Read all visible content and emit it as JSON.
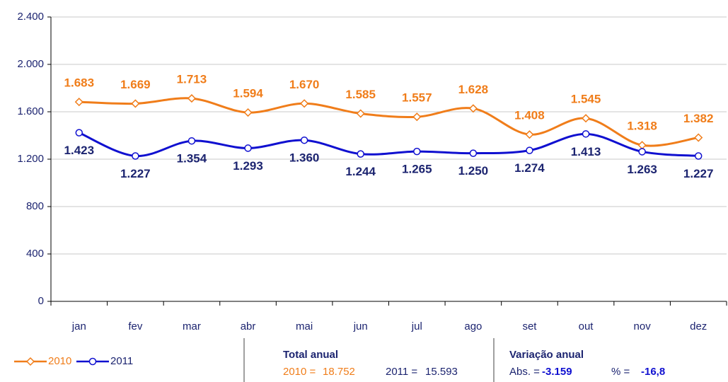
{
  "chart_data": {
    "type": "line",
    "categories": [
      "jan",
      "fev",
      "mar",
      "abr",
      "mai",
      "jun",
      "jul",
      "ago",
      "set",
      "out",
      "nov",
      "dez"
    ],
    "series": [
      {
        "name": "2010",
        "color": "#f07d1a",
        "label_color": "#f07d1a",
        "marker": "diamond",
        "values": [
          1683,
          1669,
          1713,
          1594,
          1670,
          1585,
          1557,
          1628,
          1408,
          1545,
          1318,
          1382
        ],
        "value_labels": [
          "1.683",
          "1.669",
          "1.713",
          "1.594",
          "1.670",
          "1.585",
          "1.557",
          "1.628",
          "1.408",
          "1.545",
          "1.318",
          "1.382"
        ]
      },
      {
        "name": "2011",
        "color": "#1010d0",
        "label_color": "#1c2470",
        "marker": "circle",
        "values": [
          1423,
          1227,
          1354,
          1293,
          1360,
          1244,
          1265,
          1250,
          1274,
          1413,
          1263,
          1227
        ],
        "value_labels": [
          "1.423",
          "1.227",
          "1.354",
          "1.293",
          "1.360",
          "1.244",
          "1.265",
          "1.250",
          "1.274",
          "1.413",
          "1.263",
          "1.227"
        ]
      }
    ],
    "ylim": [
      0,
      2400
    ],
    "yticks": [
      0,
      400,
      800,
      {
        "value": 1200,
        "label": "1.200"
      },
      {
        "value": 1600,
        "label": "1.600"
      },
      {
        "value": 2000,
        "label": "2.000"
      },
      {
        "value": 2400,
        "label": "2.400"
      }
    ],
    "grid": true,
    "total": {
      "title": "Total anual",
      "items": [
        {
          "label": "2010 =",
          "value": "18.752"
        },
        {
          "label": "2011 =",
          "value": "15.593"
        }
      ]
    },
    "variation": {
      "title": "Variação anual",
      "items": [
        {
          "label": "Abs. =",
          "value": "-3.159"
        },
        {
          "label": "% =",
          "value": "-16,8"
        }
      ]
    }
  }
}
